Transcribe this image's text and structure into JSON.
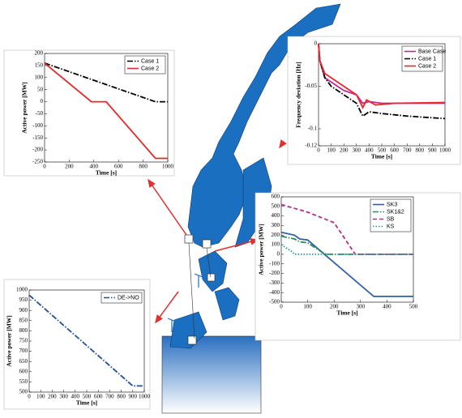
{
  "chart_data": [
    {
      "type": "line",
      "ylabel": "Active power [MW]",
      "xlabel": "Time [s]",
      "xlim": [
        0,
        1000
      ],
      "xticks": [
        0,
        200,
        400,
        600,
        800,
        1000
      ],
      "ylim": [
        -250,
        200
      ],
      "yticks": [
        200,
        150,
        100,
        50,
        0,
        -50,
        -100,
        -150,
        -200,
        -250
      ],
      "legend": "upper right",
      "series": [
        {
          "name": "Case 1",
          "color": "#000000",
          "dash": "dashdot",
          "x": [
            0,
            900,
            1000
          ],
          "values": [
            160,
            0,
            0
          ]
        },
        {
          "name": "Case 2",
          "color": "#e8262b",
          "dash": "solid",
          "x": [
            0,
            380,
            500,
            900,
            1000
          ],
          "values": [
            160,
            0,
            0,
            -235,
            -235
          ]
        }
      ]
    },
    {
      "type": "line",
      "ylabel": "Frequency deviation [Hz]",
      "xlabel": "Time [s]",
      "xlim": [
        0,
        1000
      ],
      "xticks": [
        0,
        100,
        200,
        300,
        400,
        500,
        600,
        700,
        800,
        900,
        1000
      ],
      "ylim": [
        -0.12,
        0
      ],
      "yticks": [
        0,
        -0.05,
        -0.1,
        -0.12
      ],
      "legend": "upper right",
      "series": [
        {
          "name": "Base Case",
          "color": "#c0279c",
          "dash": "solid",
          "x": [
            0,
            10,
            50,
            100,
            150,
            200,
            300,
            350,
            400,
            500,
            1000
          ],
          "values": [
            0,
            -0.02,
            -0.04,
            -0.045,
            -0.05,
            -0.055,
            -0.06,
            -0.07,
            -0.068,
            -0.07,
            -0.07
          ]
        },
        {
          "name": "Case 1",
          "color": "#000000",
          "dash": "dashdot",
          "x": [
            0,
            10,
            50,
            100,
            200,
            300,
            350,
            400,
            500,
            700,
            1000
          ],
          "values": [
            0,
            -0.02,
            -0.04,
            -0.05,
            -0.06,
            -0.07,
            -0.085,
            -0.08,
            -0.082,
            -0.085,
            -0.088
          ]
        },
        {
          "name": "Case 2",
          "color": "#e8262b",
          "dash": "solid",
          "x": [
            0,
            10,
            50,
            100,
            200,
            300,
            350,
            380,
            450,
            600,
            1000
          ],
          "values": [
            0,
            -0.02,
            -0.035,
            -0.04,
            -0.05,
            -0.06,
            -0.075,
            -0.066,
            -0.072,
            -0.07,
            -0.069
          ]
        }
      ]
    },
    {
      "type": "line",
      "ylabel": "Active power [MW]",
      "xlabel": "Time [s]",
      "xlim": [
        0,
        500
      ],
      "xticks": [
        0,
        100,
        200,
        300,
        400,
        500
      ],
      "ylim": [
        -500,
        600
      ],
      "yticks": [
        600,
        500,
        400,
        300,
        200,
        100,
        0,
        -100,
        -200,
        -300,
        -400,
        -500
      ],
      "legend": "upper right",
      "series": [
        {
          "name": "SK3",
          "color": "#2e5fa8",
          "dash": "solid",
          "x": [
            0,
            50,
            70,
            100,
            350,
            500
          ],
          "values": [
            230,
            200,
            160,
            150,
            -440,
            -440
          ]
        },
        {
          "name": "SK1&2",
          "color": "#2a8a55",
          "dash": "dashdot",
          "x": [
            0,
            50,
            70,
            100,
            150,
            170,
            500
          ],
          "values": [
            190,
            160,
            130,
            120,
            30,
            0,
            0
          ]
        },
        {
          "name": "SB",
          "color": "#b0308f",
          "dash": "dashed",
          "x": [
            0,
            100,
            200,
            280,
            500
          ],
          "values": [
            520,
            440,
            330,
            0,
            0
          ]
        },
        {
          "name": "KS",
          "color": "#1a9a9a",
          "dash": "dotted",
          "x": [
            0,
            40,
            50,
            500
          ],
          "values": [
            100,
            30,
            0,
            0
          ]
        }
      ]
    },
    {
      "type": "line",
      "ylabel": "Active power [MW]",
      "xlabel": "Time [s]",
      "xlim": [
        0,
        1000
      ],
      "xticks": [
        0,
        100,
        200,
        300,
        400,
        500,
        600,
        700,
        800,
        900,
        1000
      ],
      "ylim": [
        500,
        1000
      ],
      "yticks": [
        1000,
        950,
        900,
        850,
        800,
        750,
        700,
        650,
        600,
        550,
        500
      ],
      "legend": "upper right",
      "series": [
        {
          "name": "DE->NO",
          "color": "#1f4f9c",
          "dash": "dashdot",
          "x": [
            0,
            900,
            1000
          ],
          "values": [
            975,
            530,
            530
          ]
        }
      ]
    }
  ]
}
